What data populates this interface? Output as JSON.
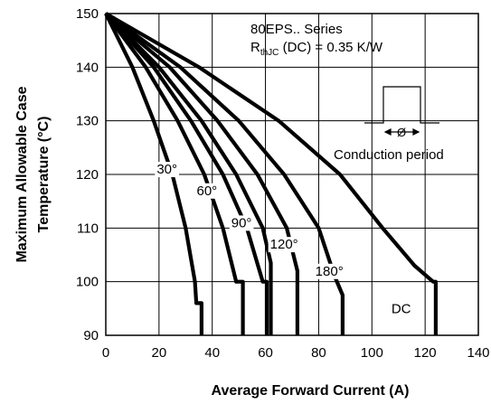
{
  "chart_data": {
    "type": "line",
    "xlabel": "Average Forward Current (A)",
    "ylabel_lines": [
      "Maximum Allowable Case",
      "Temperature (°C)"
    ],
    "xlim": [
      0,
      140
    ],
    "ylim": [
      90,
      150
    ],
    "x_ticks": [
      0,
      20,
      40,
      60,
      80,
      100,
      120,
      140
    ],
    "y_ticks": [
      90,
      100,
      110,
      120,
      130,
      140,
      150
    ],
    "grid": true,
    "annotation": {
      "series_name": "80EPS.. Series",
      "rth_prefix": "R",
      "rth_sub": "thJC",
      "rth_suffix": " (DC) = 0.35 K/W",
      "inset_symbol": "Ø",
      "inset_caption": "Conduction period"
    },
    "series": [
      {
        "label": "30°",
        "label_at": [
          23,
          121
        ],
        "points": [
          [
            0,
            150
          ],
          [
            10,
            140
          ],
          [
            18,
            130
          ],
          [
            25,
            120
          ],
          [
            30,
            110
          ],
          [
            33.5,
            100
          ],
          [
            34,
            96
          ],
          [
            36,
            96
          ],
          [
            36,
            90
          ]
        ]
      },
      {
        "label": "60°",
        "label_at": [
          38,
          117
        ],
        "points": [
          [
            0,
            150
          ],
          [
            15,
            140
          ],
          [
            27,
            130
          ],
          [
            37,
            120
          ],
          [
            44,
            110
          ],
          [
            49,
            100
          ],
          [
            49.5,
            100
          ],
          [
            51.5,
            100
          ],
          [
            51.5,
            90
          ]
        ]
      },
      {
        "label": "90°",
        "label_at": [
          51,
          111
        ],
        "points": [
          [
            0,
            150
          ],
          [
            18,
            140
          ],
          [
            32,
            130
          ],
          [
            44,
            120
          ],
          [
            53,
            110
          ],
          [
            59,
            100
          ],
          [
            59.5,
            100
          ],
          [
            60.5,
            100
          ],
          [
            60.5,
            90
          ]
        ]
      },
      {
        "label": "120°",
        "label_at": [
          67,
          107
        ],
        "points": [
          [
            0,
            150
          ],
          [
            20,
            140
          ],
          [
            36,
            130
          ],
          [
            49,
            120
          ],
          [
            59,
            110
          ],
          [
            62,
            103.5
          ],
          [
            62,
            90
          ]
        ]
      },
      {
        "label": "180°",
        "label_at": [
          84,
          102
        ],
        "points": [
          [
            0,
            150
          ],
          [
            24,
            140
          ],
          [
            42,
            130
          ],
          [
            57,
            120
          ],
          [
            68,
            110
          ],
          [
            72,
            102
          ],
          [
            72,
            90
          ]
        ]
      },
      {
        "label": "",
        "label_at": null,
        "points": [
          [
            0,
            150
          ],
          [
            28,
            140
          ],
          [
            50,
            130
          ],
          [
            67,
            120
          ],
          [
            80,
            110
          ],
          [
            86,
            101
          ],
          [
            89,
            97.5
          ],
          [
            89,
            90
          ]
        ]
      },
      {
        "label": "DC",
        "label_at": [
          111,
          95
        ],
        "points": [
          [
            0,
            150
          ],
          [
            35,
            140
          ],
          [
            65,
            130
          ],
          [
            88,
            120
          ],
          [
            104,
            110
          ],
          [
            116,
            103
          ],
          [
            123,
            100
          ],
          [
            124,
            100
          ],
          [
            124,
            90
          ]
        ]
      }
    ]
  }
}
